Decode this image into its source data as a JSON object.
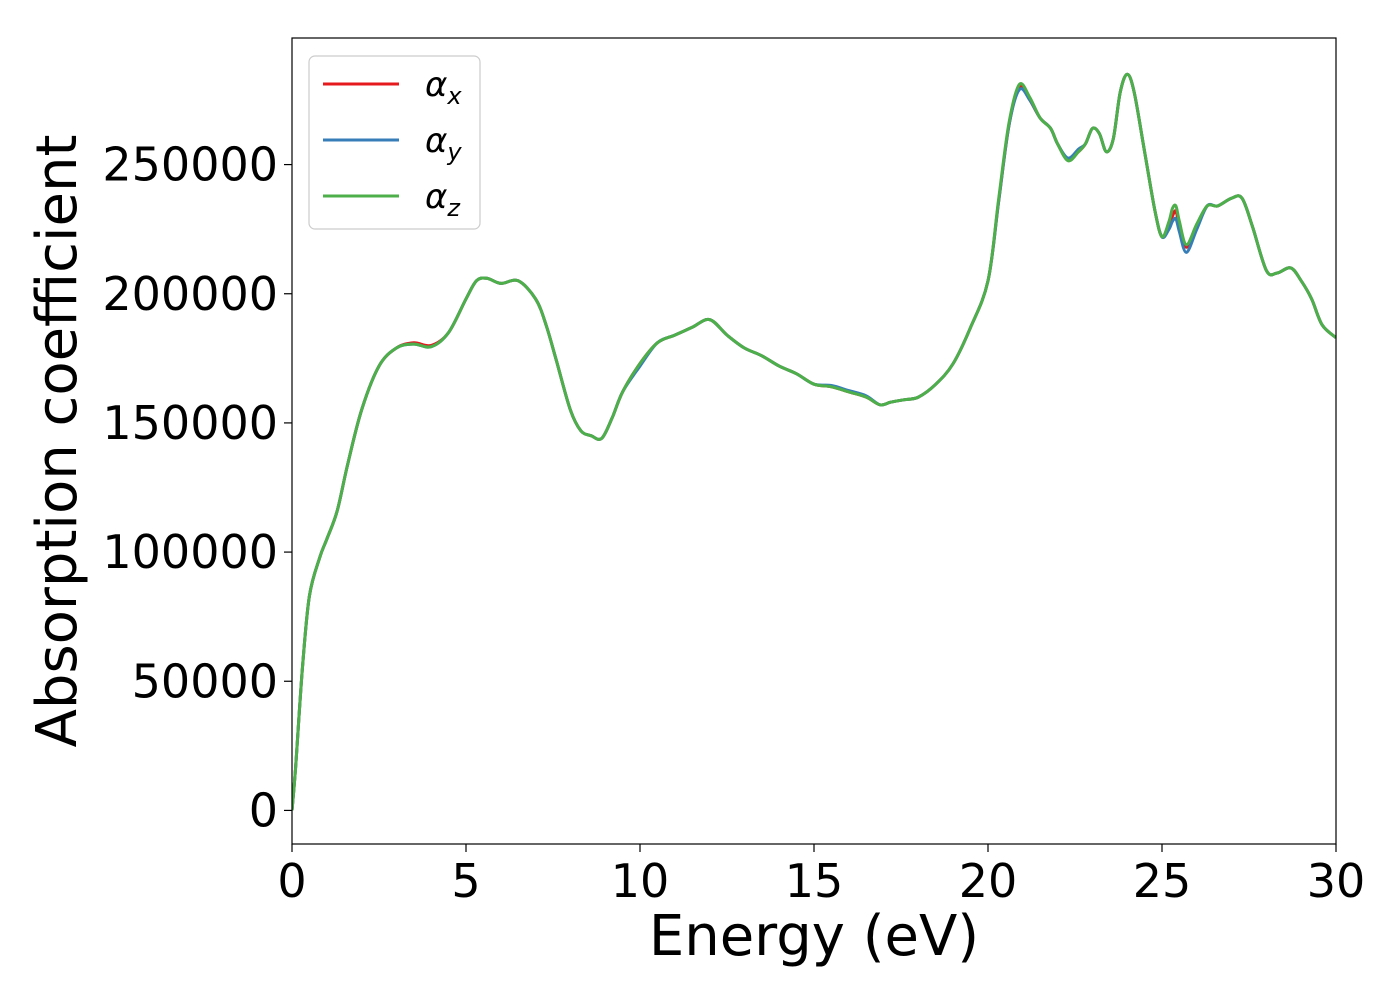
{
  "chart_data": {
    "type": "line",
    "xlabel": "Energy (eV)",
    "ylabel": "Absorption coefficient",
    "xlim": [
      0,
      30
    ],
    "ylim": [
      -13000,
      299000
    ],
    "xticks": [
      0,
      5,
      10,
      15,
      20,
      25,
      30
    ],
    "xtick_labels": [
      "0",
      "5",
      "10",
      "15",
      "20",
      "25",
      "30"
    ],
    "yticks": [
      0,
      50000,
      100000,
      150000,
      200000,
      250000
    ],
    "ytick_labels": [
      "0",
      "50000",
      "100000",
      "150000",
      "200000",
      "250000"
    ],
    "grid": false,
    "legend_position": "top-left",
    "x": [
      0,
      0.1,
      0.3,
      0.5,
      0.8,
      1.0,
      1.3,
      1.6,
      2.0,
      2.5,
      3.0,
      3.5,
      4.0,
      4.5,
      5.0,
      5.3,
      5.6,
      6.0,
      6.5,
      7.0,
      7.3,
      7.6,
      8.0,
      8.3,
      8.6,
      8.9,
      9.2,
      9.5,
      10.0,
      10.5,
      11.0,
      11.5,
      12.0,
      12.5,
      13.0,
      13.5,
      14.0,
      14.5,
      15.0,
      15.5,
      16.0,
      16.5,
      16.9,
      17.2,
      17.6,
      18.0,
      18.5,
      19.0,
      19.5,
      20.0,
      20.3,
      20.6,
      20.9,
      21.2,
      21.5,
      21.8,
      22.0,
      22.3,
      22.6,
      22.8,
      23.0,
      23.2,
      23.4,
      23.6,
      23.8,
      24.0,
      24.2,
      24.5,
      24.8,
      25.0,
      25.2,
      25.3,
      25.4,
      25.5,
      25.7,
      26.0,
      26.3,
      26.6,
      27.0,
      27.3,
      27.6,
      28.0,
      28.3,
      28.7,
      29.0,
      29.3,
      29.6,
      30.0
    ],
    "series": [
      {
        "name": "αx",
        "color": "#e41a1c",
        "values": [
          0,
          16000,
          55000,
          83000,
          98000,
          105000,
          116000,
          134000,
          155000,
          172000,
          179000,
          181000,
          180000,
          185000,
          198000,
          205000,
          206000,
          204000,
          205000,
          198000,
          188000,
          174000,
          155000,
          147000,
          145000,
          144000,
          152000,
          162000,
          173000,
          181000,
          184000,
          187000,
          190000,
          184000,
          179000,
          176000,
          172000,
          169000,
          165000,
          164000,
          162000,
          160000,
          157000,
          158000,
          159000,
          160000,
          165000,
          173000,
          187000,
          205000,
          235000,
          265000,
          280000,
          275000,
          268000,
          264000,
          258000,
          252000,
          255000,
          258000,
          264000,
          262000,
          255000,
          260000,
          278000,
          285000,
          278000,
          255000,
          232000,
          222000,
          226000,
          230000,
          232000,
          226000,
          218000,
          226000,
          234000,
          234000,
          237000,
          237000,
          226000,
          209000,
          208000,
          210000,
          205000,
          198000,
          188000,
          183000
        ]
      },
      {
        "name": "αy",
        "color": "#377eb8",
        "values": [
          0,
          16000,
          55000,
          83000,
          98000,
          105000,
          116000,
          134000,
          155000,
          172000,
          179000,
          180500,
          179500,
          185000,
          198000,
          205000,
          206000,
          204000,
          205000,
          198000,
          188000,
          174000,
          155000,
          147000,
          145000,
          144000,
          152000,
          162000,
          172000,
          181000,
          184000,
          187000,
          190000,
          184000,
          179000,
          176000,
          172000,
          169000,
          165000,
          164500,
          162500,
          160500,
          157000,
          158000,
          159000,
          160000,
          165000,
          173000,
          187000,
          205000,
          235000,
          265000,
          279000,
          275000,
          268000,
          264000,
          258000,
          252500,
          256000,
          258000,
          264000,
          262000,
          255000,
          260000,
          278000,
          285000,
          278000,
          255000,
          232000,
          222000,
          225000,
          228000,
          229000,
          224000,
          216000,
          225000,
          234000,
          234000,
          237000,
          237000,
          226000,
          209000,
          208000,
          210000,
          205000,
          198000,
          188000,
          183000
        ]
      },
      {
        "name": "αz",
        "color": "#4daf4a",
        "values": [
          0,
          16000,
          55000,
          83000,
          98000,
          105000,
          116000,
          134000,
          155000,
          172000,
          179000,
          180500,
          179500,
          185000,
          198000,
          205000,
          206000,
          204000,
          205000,
          198000,
          188000,
          174000,
          155000,
          147000,
          145000,
          144000,
          152000,
          162000,
          173000,
          181000,
          184000,
          187000,
          190000,
          184000,
          179000,
          176000,
          172000,
          169000,
          165000,
          164000,
          162000,
          160000,
          157000,
          158000,
          159000,
          160000,
          165000,
          173000,
          187000,
          205000,
          236000,
          266000,
          281000,
          276000,
          268000,
          264000,
          258000,
          251500,
          255000,
          258000,
          264000,
          262000,
          255000,
          260000,
          278000,
          285000,
          278000,
          255000,
          232000,
          222000,
          228000,
          233000,
          234000,
          228000,
          219000,
          227000,
          234000,
          234000,
          237000,
          237000,
          226000,
          209000,
          208000,
          210000,
          205000,
          198000,
          188000,
          183000
        ]
      }
    ]
  }
}
